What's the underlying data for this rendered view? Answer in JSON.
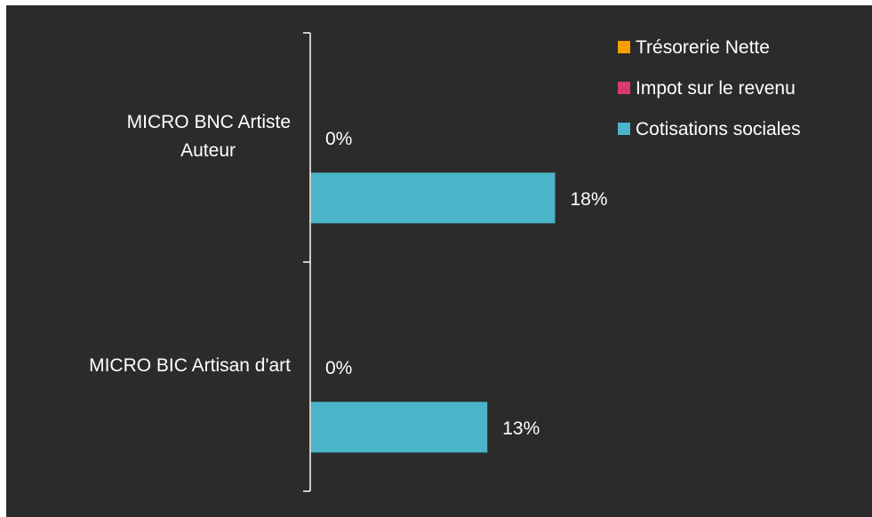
{
  "colors": {
    "background": "#2b2b2b",
    "text": "#ffffff",
    "axis": "#ffffff",
    "tresorerie": "#f5a000",
    "impot": "#d63a72",
    "cotisations": "#4ab4c8"
  },
  "chart_data": {
    "type": "bar",
    "orientation": "horizontal",
    "categories": [
      "MICRO BNC Artiste Auteur",
      "MICRO BIC Artisan d'art"
    ],
    "category_label_lines": [
      [
        "MICRO BNC Artiste",
        "Auteur"
      ],
      [
        "MICRO BIC Artisan d'art"
      ]
    ],
    "series": [
      {
        "name": "Trésorerie Nette",
        "values": [
          0,
          0
        ],
        "labels": [
          "0%",
          "0%"
        ],
        "color": "#f5a000"
      },
      {
        "name": "Impot sur le revenu",
        "values": [
          0,
          0
        ],
        "labels": [
          "0%",
          "0%"
        ],
        "color": "#d63a72"
      },
      {
        "name": "Cotisations sociales",
        "values": [
          18,
          13
        ],
        "labels": [
          "18%",
          "13%"
        ],
        "color": "#4ab4c8"
      }
    ],
    "xlim": [
      0,
      40
    ],
    "unit": "%",
    "legend_position": "top-right",
    "grid": false
  }
}
